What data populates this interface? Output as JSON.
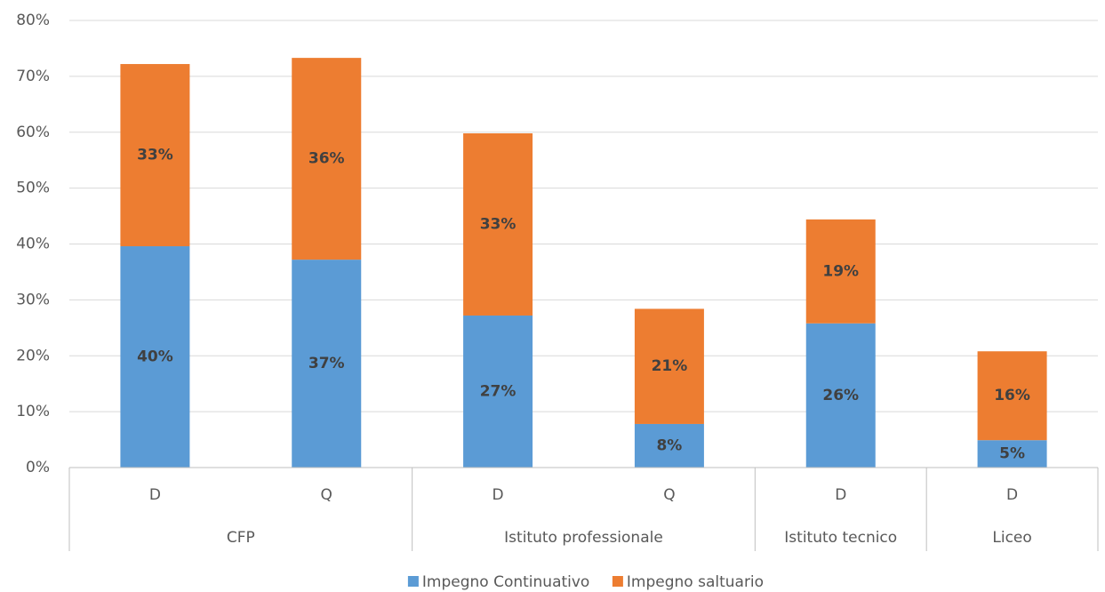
{
  "chart_data": {
    "type": "stacked_bar",
    "groups": [
      {
        "name": "CFP",
        "categories": [
          "D",
          "Q"
        ]
      },
      {
        "name": "Istituto professionale",
        "categories": [
          "D",
          "Q"
        ]
      },
      {
        "name": "Istituto tecnico",
        "categories": [
          "D"
        ]
      },
      {
        "name": "Liceo",
        "categories": [
          "D"
        ]
      }
    ],
    "series": [
      {
        "name": "Impegno Continuativo",
        "color": "#5b9bd5",
        "values": [
          39.6,
          37.2,
          27.2,
          7.8,
          25.8,
          4.9
        ],
        "value_labels": [
          "40%",
          "37%",
          "27%",
          "8%",
          "26%",
          "5%"
        ]
      },
      {
        "name": "Impegno saltuario",
        "color": "#ed7d31",
        "values": [
          32.6,
          36.1,
          32.6,
          20.6,
          18.6,
          15.9
        ],
        "value_labels": [
          "33%",
          "36%",
          "33%",
          "21%",
          "19%",
          "16%"
        ]
      }
    ],
    "ylim": [
      0,
      80
    ],
    "yticks": [
      {
        "value": 0,
        "label": "0%"
      },
      {
        "value": 10,
        "label": "10%"
      },
      {
        "value": 20,
        "label": "20%"
      },
      {
        "value": 30,
        "label": "30%"
      },
      {
        "value": 40,
        "label": "40%"
      },
      {
        "value": 50,
        "label": "50%"
      },
      {
        "value": 60,
        "label": "60%"
      },
      {
        "value": 70,
        "label": "70%"
      },
      {
        "value": 80,
        "label": "80%"
      }
    ],
    "grid": true,
    "legend": "bottom"
  }
}
